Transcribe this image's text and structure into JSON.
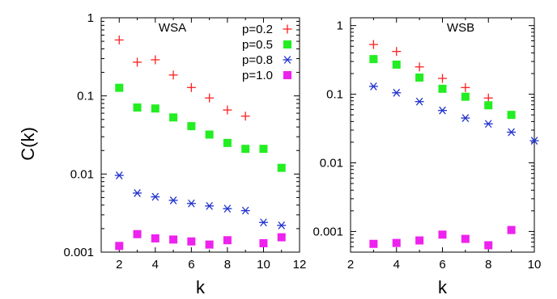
{
  "chart_data": [
    {
      "type": "scatter",
      "title": "WSA",
      "xlabel": "k",
      "ylabel": "C(k)",
      "xlim": [
        1,
        12
      ],
      "ylim": [
        0.001,
        1
      ],
      "yscale": "log",
      "xticks": [
        "2",
        "4",
        "6",
        "8",
        "10",
        "12"
      ],
      "yticks": [
        "0.001",
        "0.01",
        "0.1",
        "1"
      ],
      "legend": "top-right",
      "series": [
        {
          "name": "p=0.2",
          "marker": "plus",
          "color": "#ff2020",
          "x": [
            2,
            3,
            4,
            5,
            6,
            7,
            8,
            9
          ],
          "y": [
            0.52,
            0.27,
            0.29,
            0.185,
            0.128,
            0.094,
            0.066,
            0.055
          ]
        },
        {
          "name": "p=0.5",
          "marker": "square",
          "color": "#22ee22",
          "x": [
            2,
            3,
            4,
            5,
            6,
            7,
            8,
            9,
            10,
            11
          ],
          "y": [
            0.127,
            0.071,
            0.069,
            0.053,
            0.041,
            0.032,
            0.025,
            0.021,
            0.021,
            0.012
          ]
        },
        {
          "name": "p=0.8",
          "marker": "asterisk",
          "color": "#2233cc",
          "x": [
            2,
            3,
            4,
            5,
            6,
            7,
            8,
            9,
            10,
            11
          ],
          "y": [
            0.0096,
            0.0057,
            0.0051,
            0.0046,
            0.0042,
            0.0039,
            0.0036,
            0.0034,
            0.0024,
            0.0022
          ]
        },
        {
          "name": "p=1.0",
          "marker": "square",
          "color": "#ee22ee",
          "x": [
            2,
            3,
            4,
            5,
            6,
            7,
            8,
            10,
            11
          ],
          "y": [
            0.0012,
            0.0017,
            0.0015,
            0.00145,
            0.00137,
            0.00125,
            0.00142,
            0.0013,
            0.00155
          ]
        }
      ]
    },
    {
      "type": "scatter",
      "title": "WSB",
      "xlabel": "k",
      "ylabel": "",
      "xlim": [
        2,
        10
      ],
      "ylim": [
        0.0005,
        1.3
      ],
      "yscale": "log",
      "xticks": [
        "2",
        "4",
        "6",
        "8",
        "10"
      ],
      "yticks": [
        "0.001",
        "0.01",
        "0.1",
        "1"
      ],
      "series": [
        {
          "name": "p=0.2",
          "marker": "plus",
          "color": "#ff2020",
          "x": [
            3,
            4,
            5,
            6,
            7,
            8
          ],
          "y": [
            0.53,
            0.42,
            0.25,
            0.17,
            0.125,
            0.088
          ]
        },
        {
          "name": "p=0.5",
          "marker": "square",
          "color": "#22ee22",
          "x": [
            3,
            4,
            5,
            6,
            7,
            8,
            9
          ],
          "y": [
            0.325,
            0.27,
            0.175,
            0.12,
            0.092,
            0.069,
            0.05
          ]
        },
        {
          "name": "p=0.8",
          "marker": "asterisk",
          "color": "#2233cc",
          "x": [
            3,
            4,
            5,
            6,
            7,
            8,
            9,
            10
          ],
          "y": [
            0.13,
            0.105,
            0.078,
            0.058,
            0.045,
            0.037,
            0.028,
            0.021
          ]
        },
        {
          "name": "p=1.0",
          "marker": "square",
          "color": "#ee22ee",
          "x": [
            3,
            4,
            5,
            6,
            7,
            8,
            9
          ],
          "y": [
            0.00066,
            0.00068,
            0.00074,
            0.0009,
            0.00078,
            0.00063,
            0.00105
          ]
        }
      ]
    }
  ]
}
